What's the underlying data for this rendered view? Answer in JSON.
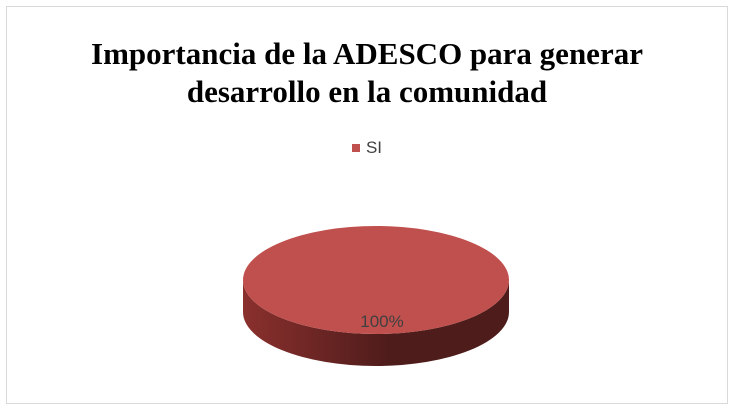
{
  "chart_data": {
    "type": "pie",
    "title": [
      "Importancia de la ADESCO para generar",
      "desarrollo en la comunidad"
    ],
    "categories": [
      "SI"
    ],
    "values": [
      100
    ],
    "data_labels": [
      "100%"
    ],
    "legend": {
      "placement": "top",
      "entries": [
        "SI"
      ]
    },
    "colors": {
      "slice": "#c0504d",
      "slice_side_dark": "#4e1c1b",
      "slice_side_mid": "#8a302d"
    },
    "style": "3d"
  }
}
